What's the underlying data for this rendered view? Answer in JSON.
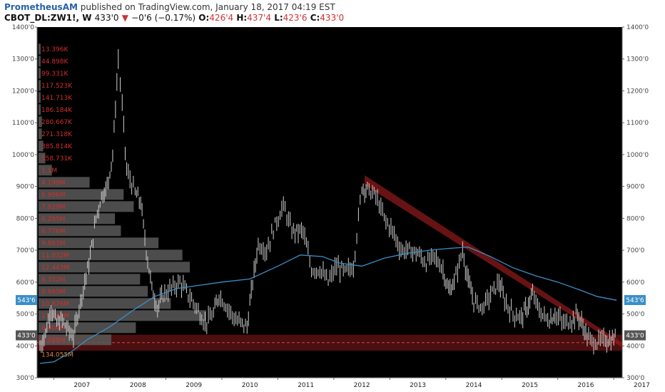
{
  "header": {
    "author": "PrometheusAM",
    "published_text": "published on TradingView.com, January 18, 2017 04:19 EST",
    "symbol": "CBOT_DL:ZW1!, W",
    "last": "433'0",
    "change": "−0'6 (−0.17%)",
    "down_icon": "triangle-down-icon",
    "ohlc": [
      {
        "label": "O:",
        "value": "426'4"
      },
      {
        "label": "H:",
        "value": "437'4"
      },
      {
        "label": "L:",
        "value": "423'6"
      },
      {
        "label": "C:",
        "value": "433'0"
      }
    ]
  },
  "colors": {
    "background": "#000000",
    "candle": "#d0d0d0",
    "ma": "#3a8fc7",
    "channel": "#8b1a1a",
    "volume_bar": "#595959",
    "volume_text": "#d0302a",
    "poc_text": "#e0893a",
    "current_price_badge": "#555555",
    "ma_badge": "#3a8fc7"
  },
  "chart_data": {
    "type": "candlestick",
    "title": "",
    "x_ticks": [
      "2007",
      "2008",
      "2009",
      "2010",
      "2011",
      "2012",
      "2013",
      "2014",
      "2015",
      "2016",
      "2017"
    ],
    "y_ticks": [
      "300'0",
      "400'0",
      "500'0",
      "600'0",
      "700'0",
      "800'0",
      "900'0",
      "1000'0",
      "1100'0",
      "1200'0",
      "1300'0",
      "1400'0"
    ],
    "y_tick_values": [
      300,
      400,
      500,
      600,
      700,
      800,
      900,
      1000,
      1100,
      1200,
      1300,
      1400
    ],
    "ylim": [
      300,
      1400
    ],
    "xlim": [
      2006.7,
      2017.15
    ],
    "price_path": [
      [
        2006.75,
        395
      ],
      [
        2006.85,
        440
      ],
      [
        2006.95,
        520
      ],
      [
        2007.05,
        470
      ],
      [
        2007.15,
        480
      ],
      [
        2007.25,
        450
      ],
      [
        2007.35,
        430
      ],
      [
        2007.45,
        520
      ],
      [
        2007.55,
        600
      ],
      [
        2007.65,
        680
      ],
      [
        2007.75,
        800
      ],
      [
        2007.85,
        870
      ],
      [
        2007.95,
        900
      ],
      [
        2008.05,
        1000
      ],
      [
        2008.15,
        1300
      ],
      [
        2008.22,
        1150
      ],
      [
        2008.3,
        950
      ],
      [
        2008.45,
        880
      ],
      [
        2008.55,
        850
      ],
      [
        2008.65,
        700
      ],
      [
        2008.75,
        580
      ],
      [
        2008.85,
        520
      ],
      [
        2008.95,
        560
      ],
      [
        2009.1,
        580
      ],
      [
        2009.25,
        600
      ],
      [
        2009.4,
        560
      ],
      [
        2009.55,
        520
      ],
      [
        2009.7,
        470
      ],
      [
        2009.85,
        500
      ],
      [
        2009.95,
        560
      ],
      [
        2010.1,
        520
      ],
      [
        2010.25,
        480
      ],
      [
        2010.45,
        460
      ],
      [
        2010.55,
        600
      ],
      [
        2010.65,
        720
      ],
      [
        2010.8,
        700
      ],
      [
        2010.95,
        780
      ],
      [
        2011.1,
        840
      ],
      [
        2011.25,
        760
      ],
      [
        2011.45,
        760
      ],
      [
        2011.6,
        640
      ],
      [
        2011.75,
        640
      ],
      [
        2011.9,
        600
      ],
      [
        2012.05,
        650
      ],
      [
        2012.2,
        630
      ],
      [
        2012.35,
        650
      ],
      [
        2012.5,
        900
      ],
      [
        2012.6,
        890
      ],
      [
        2012.75,
        870
      ],
      [
        2012.9,
        800
      ],
      [
        2013.05,
        760
      ],
      [
        2013.2,
        700
      ],
      [
        2013.35,
        700
      ],
      [
        2013.5,
        690
      ],
      [
        2013.65,
        660
      ],
      [
        2013.8,
        680
      ],
      [
        2013.95,
        640
      ],
      [
        2014.05,
        570
      ],
      [
        2014.15,
        600
      ],
      [
        2014.3,
        700
      ],
      [
        2014.4,
        600
      ],
      [
        2014.5,
        540
      ],
      [
        2014.65,
        520
      ],
      [
        2014.8,
        560
      ],
      [
        2014.95,
        600
      ],
      [
        2015.05,
        540
      ],
      [
        2015.2,
        500
      ],
      [
        2015.35,
        490
      ],
      [
        2015.45,
        520
      ],
      [
        2015.55,
        560
      ],
      [
        2015.7,
        500
      ],
      [
        2015.85,
        480
      ],
      [
        2015.95,
        500
      ],
      [
        2016.1,
        470
      ],
      [
        2016.25,
        480
      ],
      [
        2016.35,
        500
      ],
      [
        2016.45,
        460
      ],
      [
        2016.55,
        420
      ],
      [
        2016.7,
        410
      ],
      [
        2016.85,
        420
      ],
      [
        2016.95,
        415
      ],
      [
        2017.05,
        433
      ]
    ],
    "moving_average": [
      [
        2006.75,
        345
      ],
      [
        2007.0,
        350
      ],
      [
        2007.3,
        380
      ],
      [
        2007.6,
        420
      ],
      [
        2008.0,
        460
      ],
      [
        2008.4,
        510
      ],
      [
        2008.8,
        555
      ],
      [
        2009.2,
        580
      ],
      [
        2009.6,
        590
      ],
      [
        2010.0,
        600
      ],
      [
        2010.5,
        610
      ],
      [
        2011.0,
        650
      ],
      [
        2011.4,
        685
      ],
      [
        2011.8,
        680
      ],
      [
        2012.1,
        660
      ],
      [
        2012.5,
        650
      ],
      [
        2012.9,
        675
      ],
      [
        2013.3,
        690
      ],
      [
        2013.7,
        700
      ],
      [
        2014.0,
        705
      ],
      [
        2014.4,
        710
      ],
      [
        2014.8,
        680
      ],
      [
        2015.2,
        645
      ],
      [
        2015.6,
        620
      ],
      [
        2016.0,
        600
      ],
      [
        2016.4,
        575
      ],
      [
        2016.7,
        555
      ],
      [
        2017.05,
        543
      ]
    ],
    "channel_top_line": [
      [
        2012.55,
        935
      ],
      [
        2017.15,
        410
      ]
    ],
    "channel_bottom_line": [
      [
        2012.55,
        905
      ],
      [
        2017.15,
        395
      ]
    ],
    "support_zone": [
      385,
      435
    ],
    "support_dashed_level": 410,
    "volume_profile": [
      {
        "label": "13.396K",
        "value": 13396
      },
      {
        "label": "44.898K",
        "value": 44898
      },
      {
        "label": "99.331K",
        "value": 99331
      },
      {
        "label": "117.523K",
        "value": 117523
      },
      {
        "label": "141.713K",
        "value": 141713
      },
      {
        "label": "186.184K",
        "value": 186184
      },
      {
        "label": "280.667K",
        "value": 280667
      },
      {
        "label": "271.318K",
        "value": 271318
      },
      {
        "label": "385.814K",
        "value": 385814
      },
      {
        "label": "558.731K",
        "value": 558731
      },
      {
        "label": "1.1M",
        "value": 1100000
      },
      {
        "label": "4.199M",
        "value": 4199000
      },
      {
        "label": "6.996M",
        "value": 6996000
      },
      {
        "label": "7.829M",
        "value": 7829000
      },
      {
        "label": "6.285M",
        "value": 6285000
      },
      {
        "label": "6.776M",
        "value": 6776000
      },
      {
        "label": "9.863M",
        "value": 9863000
      },
      {
        "label": "11.832M",
        "value": 11832000
      },
      {
        "label": "12.443M",
        "value": 12443000
      },
      {
        "label": "8.352M",
        "value": 8352000
      },
      {
        "label": "8.985M",
        "value": 8985000
      },
      {
        "label": "10.876M",
        "value": 10876000
      },
      {
        "label": "13.789M",
        "value": 13789000
      },
      {
        "label": "8.004M",
        "value": 8004000
      },
      {
        "label": "5.988M",
        "value": 5988000
      }
    ],
    "poc_label": "134.055M",
    "current_price": 433,
    "current_price_label": "433'0",
    "ma_value": 543.75,
    "ma_label": "543'6"
  }
}
